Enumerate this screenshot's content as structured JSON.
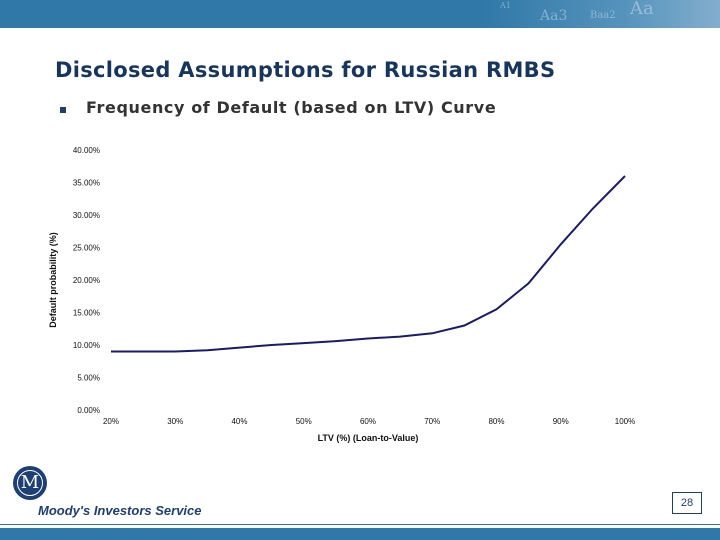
{
  "header": {
    "title": "Disclosed Assumptions for Russian RMBS",
    "bullet_text": "Frequency of Default (based on LTV) Curve"
  },
  "footer": {
    "brand": "Moody's Investors Service",
    "logo_letter": "M",
    "page_number": "28"
  },
  "colors": {
    "accent_bar": "#2f78a8",
    "title": "#17365d",
    "series_line": "#1a1a6e"
  },
  "chart_data": {
    "type": "line",
    "title": "",
    "xlabel": "LTV (%) (Loan-to-Value)",
    "ylabel": "Default probability (%)",
    "x_ticks": [
      "20%",
      "30%",
      "40%",
      "50%",
      "60%",
      "70%",
      "80%",
      "90%",
      "100%"
    ],
    "y_ticks": [
      "0.00%",
      "5.00%",
      "10.00%",
      "15.00%",
      "20.00%",
      "25.00%",
      "30.00%",
      "35.00%",
      "40.00%"
    ],
    "xlim": [
      20,
      100
    ],
    "ylim": [
      0,
      40
    ],
    "grid": false,
    "legend": "none",
    "series": [
      {
        "x": [
          20,
          25,
          30,
          35,
          40,
          45,
          50,
          55,
          60,
          65,
          70,
          75,
          80,
          85,
          90,
          95,
          100
        ],
        "values": [
          9.0,
          9.0,
          9.0,
          9.2,
          9.6,
          10.0,
          10.3,
          10.6,
          11.0,
          11.3,
          11.8,
          13.0,
          15.5,
          19.5,
          25.5,
          31.0,
          36.0
        ]
      }
    ]
  }
}
